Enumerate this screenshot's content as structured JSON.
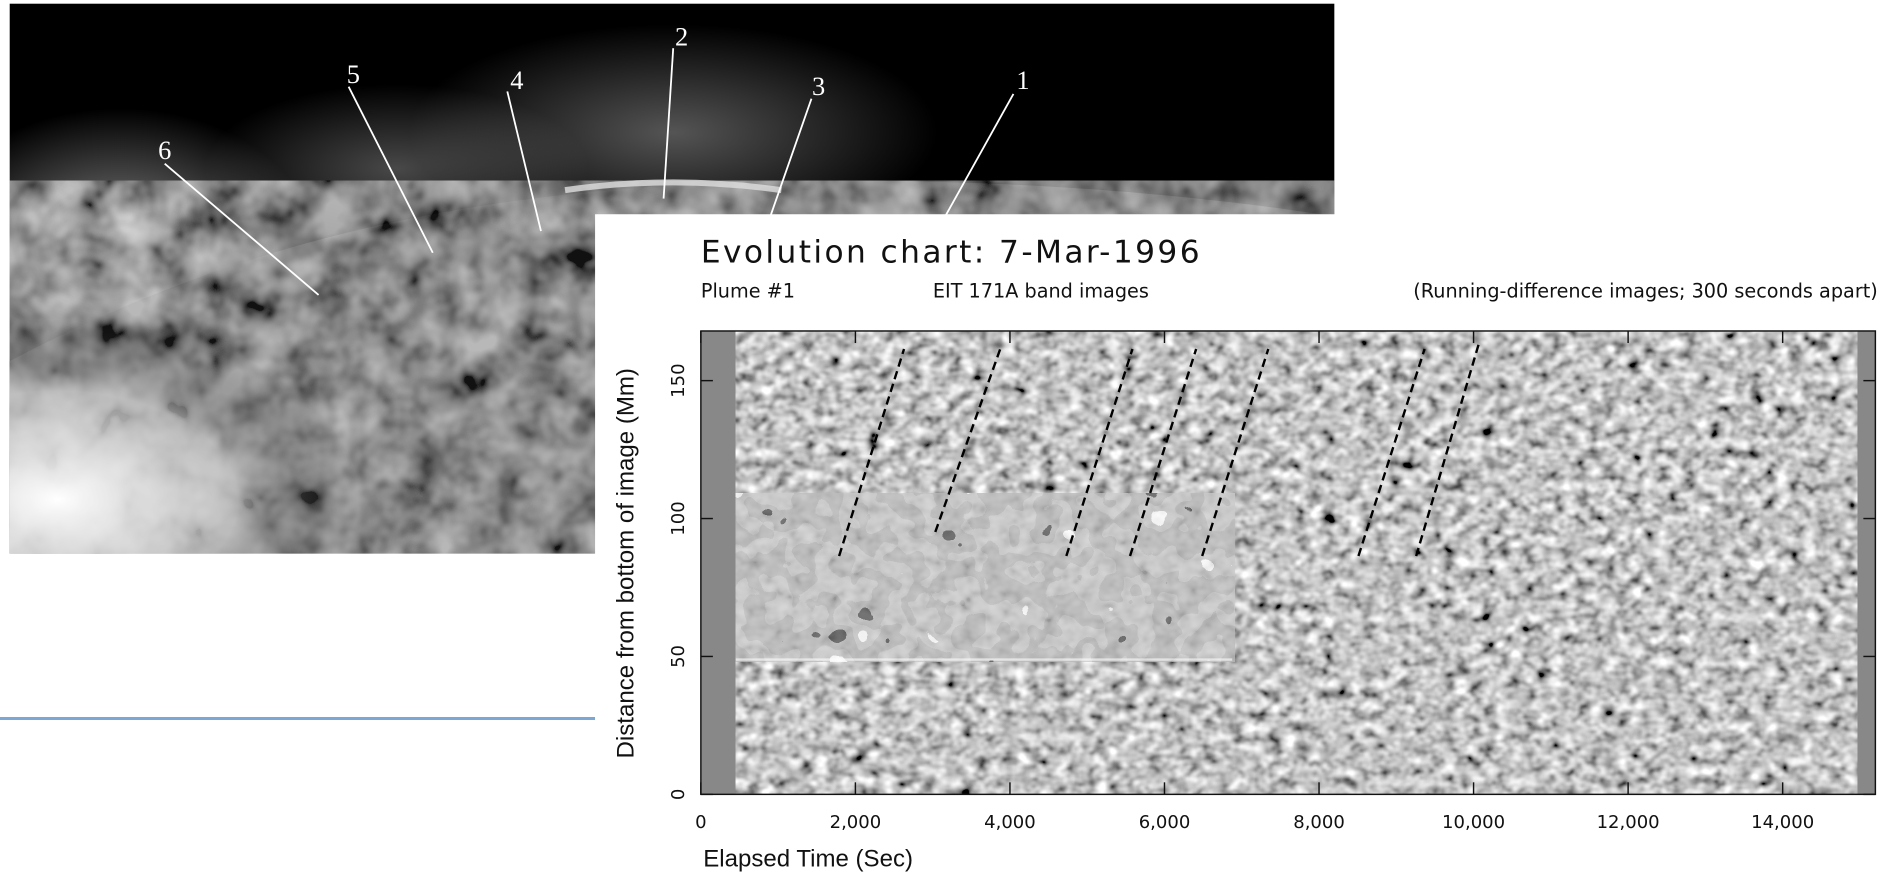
{
  "solar_image": {
    "labels": [
      "1",
      "2",
      "3",
      "4",
      "5",
      "6"
    ]
  },
  "chart_data": {
    "type": "image",
    "title": "Evolution chart: 7-Mar-1996",
    "subtitles": [
      "Plume #1",
      "EIT 171A band images",
      "(Running-difference images; 300 seconds apart)"
    ],
    "x_label": "Elapsed Time (Sec)",
    "y_label": "Distance from bottom of image (Mm)",
    "xlim": [
      0,
      15200
    ],
    "xticks": [
      0,
      {
        "value": 2000,
        "label": "2,000"
      },
      {
        "value": 4000,
        "label": "4,000"
      },
      {
        "value": 6000,
        "label": "6,000"
      },
      {
        "value": 8000,
        "label": "8,000"
      },
      {
        "value": 10000,
        "label": "10,000"
      },
      {
        "value": 12000,
        "label": "12,000"
      },
      {
        "value": 14000,
        "label": "14,000"
      }
    ],
    "ylim": [
      0,
      168
    ],
    "yticks": [
      0,
      50,
      100,
      150
    ]
  }
}
